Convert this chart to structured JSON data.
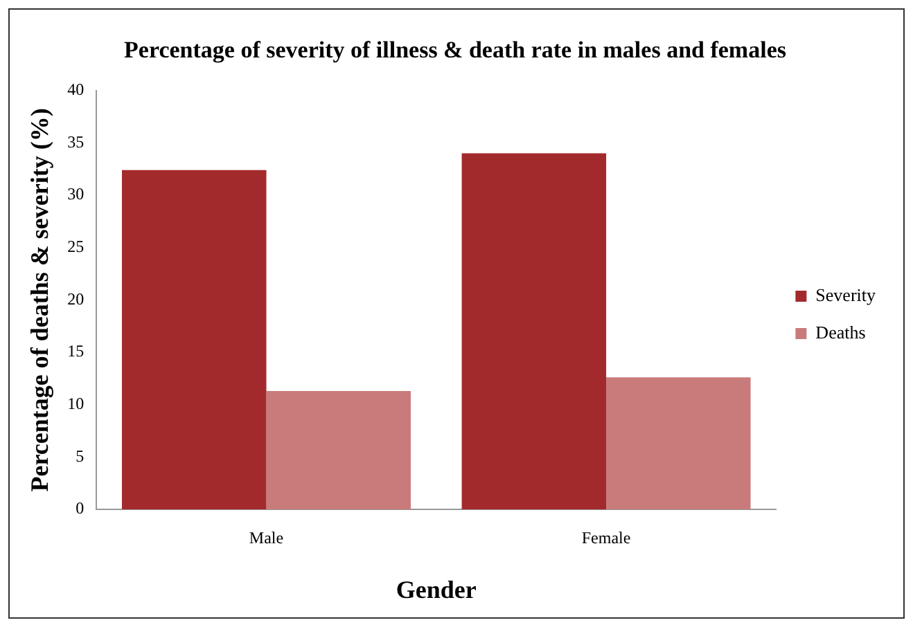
{
  "chart_data": {
    "type": "bar",
    "title": "Percentage of severity of illness & death rate in males and females",
    "xlabel": "Gender",
    "ylabel": "Percentage of deaths & severity (%)",
    "categories": [
      "Male",
      "Female"
    ],
    "series": [
      {
        "name": "Severity",
        "color": "#a32a2c",
        "values": [
          32.4,
          34.0
        ]
      },
      {
        "name": "Deaths",
        "color": "#c97b7b",
        "values": [
          11.3,
          12.6
        ]
      }
    ],
    "ylim": [
      0,
      40
    ],
    "yticks": [
      0,
      5,
      10,
      15,
      20,
      25,
      30,
      35,
      40
    ],
    "grid": false,
    "legend": "right"
  }
}
